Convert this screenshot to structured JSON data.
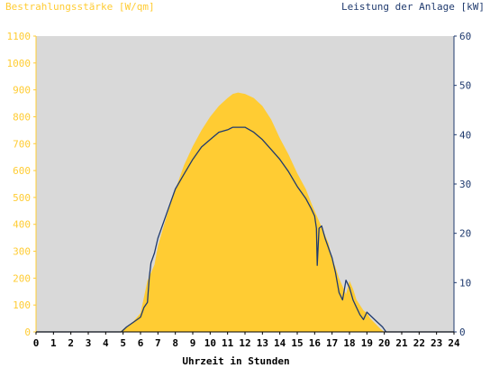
{
  "chart_data": {
    "type": "area",
    "left_axis_label": "Bestrahlungsstärke [W/qm]",
    "right_axis_label": "Leistung der Anlage [kW]",
    "xlabel": "Uhrzeit in Stunden",
    "xlim": [
      0,
      24
    ],
    "ylim_left": [
      0,
      1100
    ],
    "ylim_right": [
      0,
      60
    ],
    "x_ticks": [
      "0",
      "1",
      "2",
      "3",
      "4",
      "5",
      "6",
      "7",
      "8",
      "9",
      "10",
      "11",
      "12",
      "13",
      "14",
      "15",
      "16",
      "17",
      "18",
      "19",
      "20",
      "21",
      "22",
      "23",
      "24"
    ],
    "y_left_ticks": [
      "0",
      "100",
      "200",
      "300",
      "400",
      "500",
      "600",
      "700",
      "800",
      "900",
      "1000",
      "1100"
    ],
    "y_right_ticks": [
      "0",
      "10",
      "20",
      "30",
      "40",
      "50",
      "60"
    ],
    "grid": false,
    "colors": {
      "irradiance_fill": "#FFCC33",
      "power_line": "#1F3A6E",
      "plot_background": "#D9D9D9",
      "left_axis_text": "#FFCC33",
      "right_axis_text": "#1F3A6E",
      "x_axis_text": "#000000"
    },
    "series": [
      {
        "axis": "left",
        "style": "area",
        "x": [
          0,
          4.8,
          5.2,
          5.6,
          6.0,
          6.2,
          6.4,
          6.6,
          6.8,
          7.0,
          7.5,
          8.0,
          8.5,
          9.0,
          9.5,
          10.0,
          10.5,
          11.0,
          11.3,
          11.6,
          12.0,
          12.5,
          13.0,
          13.5,
          14.0,
          14.5,
          15.0,
          15.5,
          15.8,
          16.0,
          16.2,
          16.4,
          16.6,
          16.8,
          17.0,
          17.2,
          17.4,
          17.6,
          17.8,
          18.0,
          18.2,
          18.4,
          18.6,
          18.8,
          19.0,
          19.2,
          19.5,
          19.8,
          20.0,
          24
        ],
        "values": [
          0,
          0,
          20,
          40,
          70,
          130,
          190,
          220,
          250,
          320,
          430,
          530,
          620,
          690,
          750,
          800,
          840,
          870,
          885,
          890,
          885,
          870,
          840,
          790,
          720,
          660,
          590,
          530,
          480,
          450,
          420,
          390,
          360,
          330,
          270,
          240,
          200,
          170,
          140,
          190,
          160,
          120,
          100,
          80,
          70,
          50,
          30,
          10,
          0,
          0
        ]
      },
      {
        "axis": "right",
        "style": "line",
        "x": [
          0,
          4.9,
          5.2,
          5.6,
          6.0,
          6.2,
          6.4,
          6.5,
          6.6,
          6.8,
          7.0,
          7.5,
          8.0,
          8.5,
          9.0,
          9.5,
          10.0,
          10.5,
          11.0,
          11.3,
          11.6,
          12.0,
          12.5,
          13.0,
          13.5,
          14.0,
          14.5,
          15.0,
          15.5,
          15.8,
          16.0,
          16.1,
          16.15,
          16.25,
          16.4,
          16.6,
          16.8,
          17.0,
          17.2,
          17.4,
          17.6,
          17.8,
          18.0,
          18.2,
          18.4,
          18.6,
          18.8,
          19.0,
          19.3,
          19.6,
          19.9,
          20.1,
          24
        ],
        "values": [
          0,
          0,
          1,
          2,
          3,
          5,
          6,
          11,
          14,
          16,
          19,
          24,
          29,
          32,
          35,
          37.5,
          39,
          40.5,
          41,
          41.5,
          41.5,
          41.5,
          40.5,
          39,
          37,
          35,
          32.5,
          29.5,
          27,
          25,
          23.5,
          21,
          13.5,
          21,
          21.5,
          19,
          17,
          15,
          12,
          8,
          6.5,
          10.5,
          9,
          6.5,
          5,
          3.5,
          2.5,
          4,
          3,
          2,
          1,
          0,
          0
        ]
      }
    ]
  }
}
